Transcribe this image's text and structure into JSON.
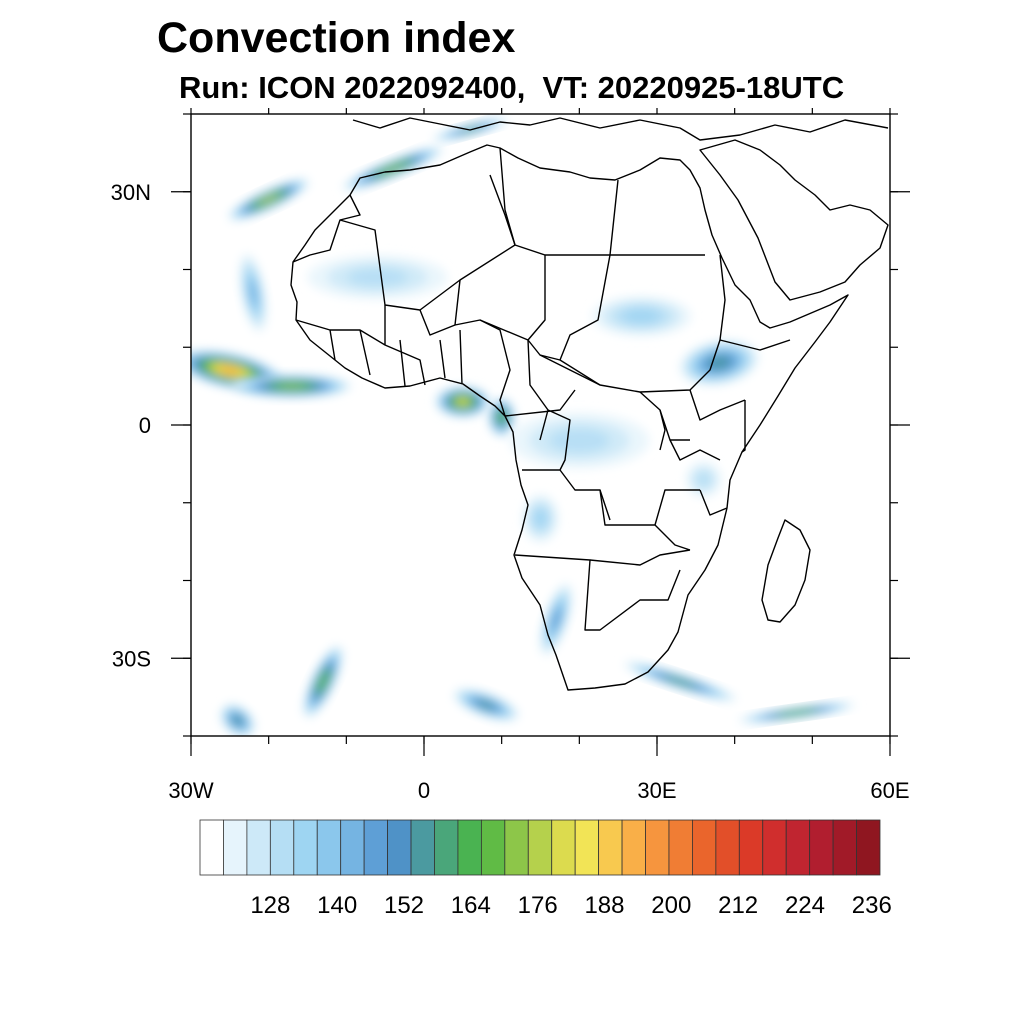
{
  "title": "Convection index",
  "subtitle": "Run: ICON 2022092400,  VT: 20220925-18UTC",
  "map": {
    "region": "Africa",
    "lon_range": [
      -30,
      60
    ],
    "lat_range": [
      -40,
      40
    ],
    "x_ticks": [
      {
        "lon": -30,
        "label": "30W"
      },
      {
        "lon": 0,
        "label": "0"
      },
      {
        "lon": 30,
        "label": "30E"
      },
      {
        "lon": 60,
        "label": "60E"
      }
    ],
    "y_ticks": [
      {
        "lat": 30,
        "label": "30N"
      },
      {
        "lat": 0,
        "label": "0"
      },
      {
        "lat": -30,
        "label": "30S"
      }
    ],
    "minor_lon_step": 10,
    "minor_lat_step": 10
  },
  "colorbar": {
    "labels": [
      "128",
      "140",
      "152",
      "164",
      "176",
      "188",
      "200",
      "212",
      "224",
      "236"
    ],
    "colors": [
      "#ffffff",
      "#e6f4fc",
      "#cde9f8",
      "#b5def4",
      "#9ed5f2",
      "#8bc7ec",
      "#75b4e2",
      "#5e9fd6",
      "#4f92c7",
      "#4b9aa0",
      "#4aa67a",
      "#4ab351",
      "#60bb45",
      "#8dc649",
      "#b5d14c",
      "#dcdb4e",
      "#f2e456",
      "#f8c94f",
      "#f9af48",
      "#f6953e",
      "#f07d34",
      "#ea652c",
      "#e24f29",
      "#db3a28",
      "#d02e2d",
      "#c02530",
      "#b11e2f",
      "#a11a28",
      "#8f1620"
    ]
  },
  "features": [
    {
      "name": "canary-atlantic-band",
      "lon": -20,
      "lat": 29,
      "rx": 45,
      "ry": 10,
      "rot": -25,
      "level": 14
    },
    {
      "name": "morocco-band",
      "lon": -4,
      "lat": 33,
      "rx": 55,
      "ry": 9,
      "rot": -22,
      "level": 13
    },
    {
      "name": "mediterranean-band",
      "lon": 6,
      "lat": 38,
      "rx": 40,
      "ry": 6,
      "rot": -15,
      "level": 10
    },
    {
      "name": "west-atlantic-core",
      "lon": -25,
      "lat": 7,
      "rx": 55,
      "ry": 18,
      "rot": 12,
      "level": 18
    },
    {
      "name": "west-coast-band",
      "lon": -17,
      "lat": 5,
      "rx": 60,
      "ry": 12,
      "rot": 0,
      "level": 13
    },
    {
      "name": "gulf-guinea",
      "lon": 5,
      "lat": 3,
      "rx": 28,
      "ry": 16,
      "rot": 0,
      "level": 15
    },
    {
      "name": "cameroon",
      "lon": 10,
      "lat": 1,
      "rx": 14,
      "ry": 20,
      "rot": 0,
      "level": 12
    },
    {
      "name": "ethiopia",
      "lon": 38,
      "lat": 8,
      "rx": 40,
      "ry": 22,
      "rot": -10,
      "level": 9
    },
    {
      "name": "sudan-sahel",
      "lon": 28,
      "lat": 14,
      "rx": 50,
      "ry": 20,
      "rot": 0,
      "level": 4
    },
    {
      "name": "sahara-west",
      "lon": -6,
      "lat": 19,
      "rx": 70,
      "ry": 22,
      "rot": 0,
      "level": 3
    },
    {
      "name": "congo-basin",
      "lon": 20,
      "lat": -2,
      "rx": 70,
      "ry": 28,
      "rot": 0,
      "level": 3
    },
    {
      "name": "angola",
      "lon": 15,
      "lat": -12,
      "rx": 18,
      "ry": 24,
      "rot": 0,
      "level": 4
    },
    {
      "name": "namibia-coast",
      "lon": 17,
      "lat": -25,
      "rx": 12,
      "ry": 38,
      "rot": 18,
      "level": 7
    },
    {
      "name": "south-africa-east",
      "lon": 33,
      "lat": -33,
      "rx": 60,
      "ry": 8,
      "rot": 18,
      "level": 10
    },
    {
      "name": "indian-ocean-south",
      "lon": 48,
      "lat": -37,
      "rx": 60,
      "ry": 6,
      "rot": -8,
      "level": 12
    },
    {
      "name": "south-atlantic-system",
      "lon": -13,
      "lat": -33,
      "rx": 12,
      "ry": 40,
      "rot": 25,
      "level": 12
    },
    {
      "name": "south-atlantic-east",
      "lon": 8,
      "lat": -36,
      "rx": 35,
      "ry": 12,
      "rot": 20,
      "level": 9
    },
    {
      "name": "sw-corner",
      "lon": -24,
      "lat": -38,
      "rx": 20,
      "ry": 14,
      "rot": 40,
      "level": 9
    },
    {
      "name": "west-atlantic-north",
      "lon": -22,
      "lat": 17,
      "rx": 12,
      "ry": 40,
      "rot": -10,
      "level": 6
    },
    {
      "name": "tanzania",
      "lon": 36,
      "lat": -7,
      "rx": 18,
      "ry": 18,
      "rot": 0,
      "level": 3
    }
  ]
}
